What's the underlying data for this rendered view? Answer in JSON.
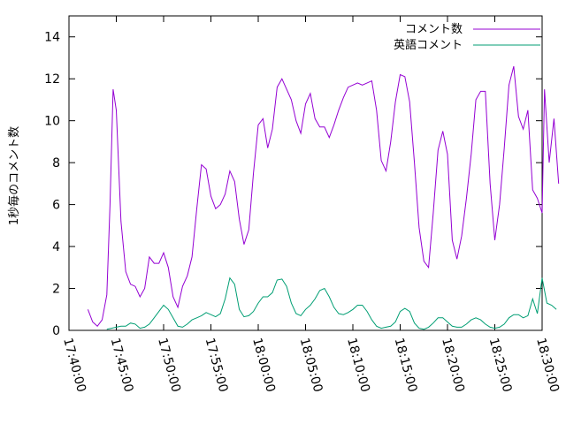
{
  "chart_data": {
    "type": "line",
    "title": "",
    "xlabel": "",
    "ylabel": "1秒毎のコメント数",
    "x_ticks": [
      "17:40:00",
      "17:45:00",
      "17:50:00",
      "17:55:00",
      "18:00:00",
      "18:05:00",
      "18:10:00",
      "18:15:00",
      "18:20:00",
      "18:25:00",
      "18:30:00"
    ],
    "xlim": [
      "17:40:00",
      "18:30:00"
    ],
    "ylim": [
      0,
      15
    ],
    "y_ticks": [
      0,
      2,
      4,
      6,
      8,
      10,
      12,
      14
    ],
    "grid": false,
    "legend_position": "top-right",
    "series": [
      {
        "name": "コメント数",
        "color": "#9400d3",
        "points": [
          [
            "17:42:00",
            1.0
          ],
          [
            "17:42:30",
            0.4
          ],
          [
            "17:43:00",
            0.2
          ],
          [
            "17:43:30",
            0.5
          ],
          [
            "17:44:00",
            1.7
          ],
          [
            "17:44:20",
            6.0
          ],
          [
            "17:44:40",
            11.5
          ],
          [
            "17:45:00",
            10.5
          ],
          [
            "17:45:30",
            5.2
          ],
          [
            "17:46:00",
            2.8
          ],
          [
            "17:46:30",
            2.2
          ],
          [
            "17:47:00",
            2.1
          ],
          [
            "17:47:30",
            1.6
          ],
          [
            "17:48:00",
            2.0
          ],
          [
            "17:48:30",
            3.5
          ],
          [
            "17:49:00",
            3.2
          ],
          [
            "17:49:30",
            3.2
          ],
          [
            "17:50:00",
            3.7
          ],
          [
            "17:50:30",
            3.0
          ],
          [
            "17:51:00",
            1.6
          ],
          [
            "17:51:30",
            1.1
          ],
          [
            "17:52:00",
            2.1
          ],
          [
            "17:52:30",
            2.6
          ],
          [
            "17:53:00",
            3.5
          ],
          [
            "17:53:30",
            5.8
          ],
          [
            "17:54:00",
            7.9
          ],
          [
            "17:54:30",
            7.7
          ],
          [
            "17:55:00",
            6.4
          ],
          [
            "17:55:30",
            5.8
          ],
          [
            "17:56:00",
            6.0
          ],
          [
            "17:56:30",
            6.5
          ],
          [
            "17:57:00",
            7.6
          ],
          [
            "17:57:30",
            7.1
          ],
          [
            "17:58:00",
            5.3
          ],
          [
            "17:58:30",
            4.1
          ],
          [
            "17:59:00",
            4.8
          ],
          [
            "17:59:30",
            7.5
          ],
          [
            "18:00:00",
            9.8
          ],
          [
            "18:00:30",
            10.1
          ],
          [
            "18:01:00",
            8.7
          ],
          [
            "18:01:30",
            9.6
          ],
          [
            "18:02:00",
            11.6
          ],
          [
            "18:02:30",
            12.0
          ],
          [
            "18:03:00",
            11.5
          ],
          [
            "18:03:30",
            11.0
          ],
          [
            "18:04:00",
            10.0
          ],
          [
            "18:04:30",
            9.4
          ],
          [
            "18:05:00",
            10.8
          ],
          [
            "18:05:30",
            11.3
          ],
          [
            "18:06:00",
            10.1
          ],
          [
            "18:06:30",
            9.7
          ],
          [
            "18:07:00",
            9.7
          ],
          [
            "18:07:30",
            9.2
          ],
          [
            "18:08:00",
            9.8
          ],
          [
            "18:08:30",
            10.5
          ],
          [
            "18:09:00",
            11.1
          ],
          [
            "18:09:30",
            11.6
          ],
          [
            "18:10:00",
            11.7
          ],
          [
            "18:10:30",
            11.8
          ],
          [
            "18:11:00",
            11.7
          ],
          [
            "18:11:30",
            11.8
          ],
          [
            "18:12:00",
            11.9
          ],
          [
            "18:12:30",
            10.5
          ],
          [
            "18:13:00",
            8.1
          ],
          [
            "18:13:30",
            7.6
          ],
          [
            "18:14:00",
            9.0
          ],
          [
            "18:14:30",
            10.9
          ],
          [
            "18:15:00",
            12.2
          ],
          [
            "18:15:30",
            12.1
          ],
          [
            "18:16:00",
            10.9
          ],
          [
            "18:16:30",
            8.0
          ],
          [
            "18:17:00",
            4.9
          ],
          [
            "18:17:30",
            3.3
          ],
          [
            "18:18:00",
            3.0
          ],
          [
            "18:18:30",
            5.6
          ],
          [
            "18:19:00",
            8.6
          ],
          [
            "18:19:30",
            9.5
          ],
          [
            "18:20:00",
            8.4
          ],
          [
            "18:20:30",
            4.3
          ],
          [
            "18:21:00",
            3.4
          ],
          [
            "18:21:30",
            4.5
          ],
          [
            "18:22:00",
            6.3
          ],
          [
            "18:22:30",
            8.4
          ],
          [
            "18:23:00",
            11.0
          ],
          [
            "18:23:30",
            11.4
          ],
          [
            "18:24:00",
            11.4
          ],
          [
            "18:24:30",
            7.0
          ],
          [
            "18:25:00",
            4.3
          ],
          [
            "18:25:30",
            6.0
          ],
          [
            "18:26:00",
            8.7
          ],
          [
            "18:26:30",
            11.7
          ],
          [
            "18:27:00",
            12.6
          ],
          [
            "18:27:30",
            10.2
          ],
          [
            "18:28:00",
            9.6
          ],
          [
            "18:28:30",
            10.5
          ],
          [
            "18:29:00",
            6.7
          ],
          [
            "18:29:30",
            6.3
          ],
          [
            "18:30:00",
            5.6
          ],
          [
            "18:30:15",
            11.5
          ],
          [
            "18:30:45",
            8.0
          ],
          [
            "18:31:15",
            10.1
          ],
          [
            "18:31:45",
            7.0
          ]
        ]
      },
      {
        "name": "英語コメント",
        "color": "#009e73",
        "points": [
          [
            "17:44:00",
            0.05
          ],
          [
            "17:44:30",
            0.1
          ],
          [
            "17:45:00",
            0.15
          ],
          [
            "17:45:30",
            0.2
          ],
          [
            "17:46:00",
            0.2
          ],
          [
            "17:46:30",
            0.35
          ],
          [
            "17:47:00",
            0.3
          ],
          [
            "17:47:30",
            0.1
          ],
          [
            "17:48:00",
            0.15
          ],
          [
            "17:48:30",
            0.3
          ],
          [
            "17:49:00",
            0.6
          ],
          [
            "17:49:30",
            0.9
          ],
          [
            "17:50:00",
            1.2
          ],
          [
            "17:50:30",
            1.0
          ],
          [
            "17:51:00",
            0.6
          ],
          [
            "17:51:30",
            0.2
          ],
          [
            "17:52:00",
            0.15
          ],
          [
            "17:52:30",
            0.3
          ],
          [
            "17:53:00",
            0.5
          ],
          [
            "17:53:30",
            0.6
          ],
          [
            "17:54:00",
            0.7
          ],
          [
            "17:54:30",
            0.85
          ],
          [
            "17:55:00",
            0.75
          ],
          [
            "17:55:30",
            0.65
          ],
          [
            "17:56:00",
            0.8
          ],
          [
            "17:56:30",
            1.5
          ],
          [
            "17:57:00",
            2.5
          ],
          [
            "17:57:30",
            2.2
          ],
          [
            "17:58:00",
            1.0
          ],
          [
            "17:58:30",
            0.65
          ],
          [
            "17:59:00",
            0.7
          ],
          [
            "17:59:30",
            0.9
          ],
          [
            "18:00:00",
            1.3
          ],
          [
            "18:00:30",
            1.6
          ],
          [
            "18:01:00",
            1.6
          ],
          [
            "18:01:30",
            1.8
          ],
          [
            "18:02:00",
            2.4
          ],
          [
            "18:02:30",
            2.45
          ],
          [
            "18:03:00",
            2.1
          ],
          [
            "18:03:30",
            1.3
          ],
          [
            "18:04:00",
            0.8
          ],
          [
            "18:04:30",
            0.7
          ],
          [
            "18:05:00",
            1.0
          ],
          [
            "18:05:30",
            1.2
          ],
          [
            "18:06:00",
            1.5
          ],
          [
            "18:06:30",
            1.9
          ],
          [
            "18:07:00",
            2.0
          ],
          [
            "18:07:30",
            1.6
          ],
          [
            "18:08:00",
            1.1
          ],
          [
            "18:08:30",
            0.8
          ],
          [
            "18:09:00",
            0.75
          ],
          [
            "18:09:30",
            0.85
          ],
          [
            "18:10:00",
            1.0
          ],
          [
            "18:10:30",
            1.2
          ],
          [
            "18:11:00",
            1.2
          ],
          [
            "18:11:30",
            0.9
          ],
          [
            "18:12:00",
            0.5
          ],
          [
            "18:12:30",
            0.2
          ],
          [
            "18:13:00",
            0.1
          ],
          [
            "18:13:30",
            0.15
          ],
          [
            "18:14:00",
            0.2
          ],
          [
            "18:14:30",
            0.4
          ],
          [
            "18:15:00",
            0.9
          ],
          [
            "18:15:30",
            1.05
          ],
          [
            "18:16:00",
            0.9
          ],
          [
            "18:16:30",
            0.35
          ],
          [
            "18:17:00",
            0.1
          ],
          [
            "18:17:30",
            0.05
          ],
          [
            "18:18:00",
            0.15
          ],
          [
            "18:18:30",
            0.35
          ],
          [
            "18:19:00",
            0.6
          ],
          [
            "18:19:30",
            0.6
          ],
          [
            "18:20:00",
            0.4
          ],
          [
            "18:20:30",
            0.2
          ],
          [
            "18:21:00",
            0.15
          ],
          [
            "18:21:30",
            0.15
          ],
          [
            "18:22:00",
            0.3
          ],
          [
            "18:22:30",
            0.5
          ],
          [
            "18:23:00",
            0.6
          ],
          [
            "18:23:30",
            0.5
          ],
          [
            "18:24:00",
            0.3
          ],
          [
            "18:24:30",
            0.15
          ],
          [
            "18:25:00",
            0.1
          ],
          [
            "18:25:30",
            0.15
          ],
          [
            "18:26:00",
            0.3
          ],
          [
            "18:26:30",
            0.6
          ],
          [
            "18:27:00",
            0.75
          ],
          [
            "18:27:30",
            0.75
          ],
          [
            "18:28:00",
            0.6
          ],
          [
            "18:28:30",
            0.7
          ],
          [
            "18:29:00",
            1.5
          ],
          [
            "18:29:30",
            0.8
          ],
          [
            "18:30:00",
            2.5
          ],
          [
            "18:30:30",
            1.3
          ],
          [
            "18:31:00",
            1.2
          ],
          [
            "18:31:30",
            1.0
          ]
        ]
      }
    ]
  }
}
